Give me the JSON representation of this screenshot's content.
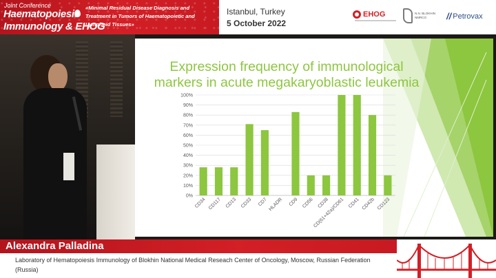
{
  "header": {
    "conference_small": "Joint Conference",
    "conference_line1": "Haematopoiesis",
    "conference_line2": "Immunology & EHOG",
    "conference_subtitle": "«Minimal Residual Disease Diagnosis and Treatment in Tumors of Haematopoietic and Lymphoid Tissues»",
    "venue_city": "Istanbul, Turkey",
    "venue_date": "5 October 2022",
    "logos": [
      {
        "name": "EHOG",
        "text": "EHOG"
      },
      {
        "name": "blokhin",
        "text": "N.N. BLOKHIN NMRCO"
      },
      {
        "name": "petrovax",
        "text": "Petrovax"
      }
    ],
    "colors": {
      "brand_red": "#d31f26",
      "petrovax_blue": "#2f4f8a"
    }
  },
  "slide": {
    "title_line1": "Expression frequency of immunological",
    "title_line2": "markers in acute megakaryoblastic leukemia",
    "title_color": "#8dc63f"
  },
  "chart_data": {
    "type": "bar",
    "title": "Expression frequency of immunological markers in acute megakaryoblastic leukemia",
    "categories": [
      "CD34",
      "CD117",
      "CD13",
      "CD33",
      "CD7",
      "HLADR",
      "CD9",
      "CD56",
      "CD38",
      "CD(61+42a)/CD61",
      "CD41",
      "CD42b",
      "CD123"
    ],
    "values": [
      28,
      28,
      28,
      71,
      65,
      0,
      83,
      20,
      20,
      100,
      100,
      80,
      20
    ],
    "ylim": [
      0,
      100
    ],
    "yticks": [
      "0%",
      "10%",
      "20%",
      "30%",
      "40%",
      "50%",
      "60%",
      "70%",
      "80%",
      "90%",
      "100%"
    ],
    "grid": true,
    "bar_color": "#8dc63f",
    "xlabel": "",
    "ylabel": ""
  },
  "lower_third": {
    "speaker_name": "Alexandra Palladina",
    "affiliation": "Laboratory of Hematopoiesis Immunology of Blokhin National Medical Reseach Center of Oncology, Moscow, Russian Federation (Russia)"
  }
}
